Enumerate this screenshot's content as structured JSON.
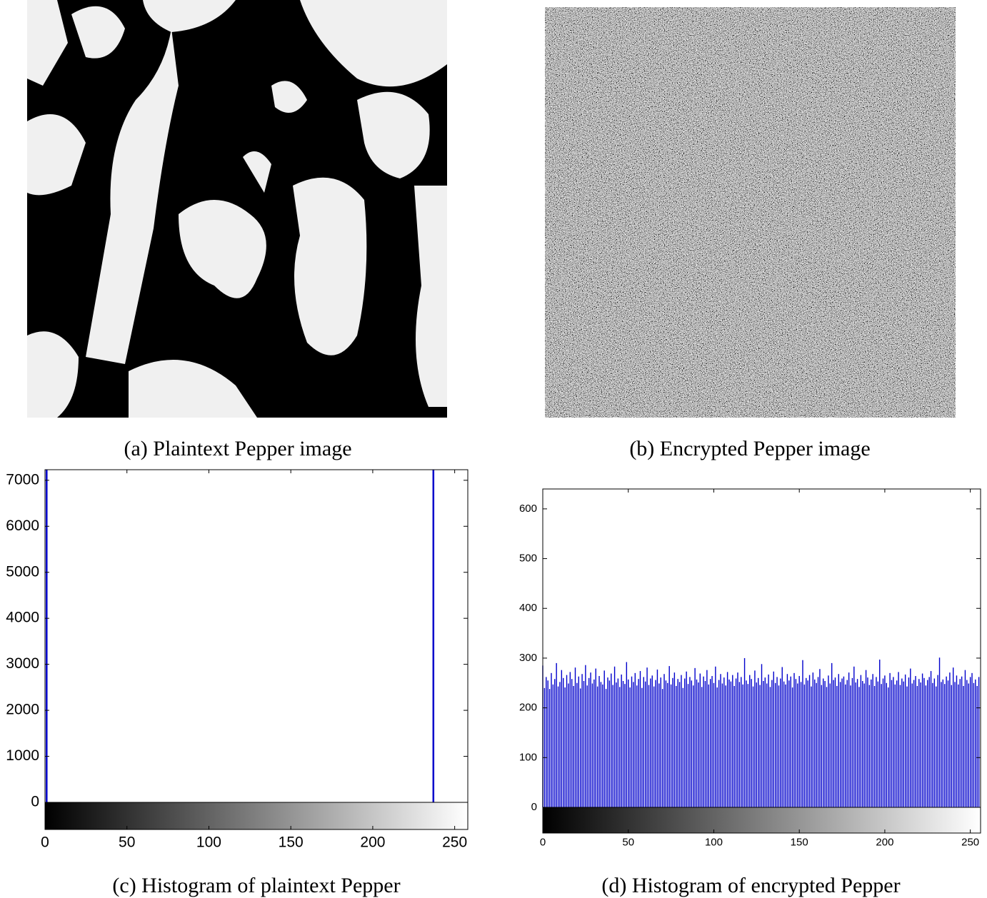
{
  "images": [
    {
      "caption": "(a) Plaintext Pepper image"
    },
    {
      "caption": "(b) Encrypted Pepper image"
    }
  ],
  "chart_data": [
    {
      "type": "bar",
      "caption": "(c) Histogram of plaintext Pepper",
      "color": "#0000cc",
      "x": [
        1,
        237
      ],
      "values": [
        7230,
        7230
      ],
      "xlim": [
        0,
        258
      ],
      "ylim": [
        0,
        7230
      ],
      "xticks": [
        0,
        50,
        100,
        150,
        200,
        250
      ],
      "yticks": [
        0,
        1000,
        2000,
        3000,
        4000,
        5000,
        6000,
        7000
      ]
    },
    {
      "type": "bar",
      "caption": "(d) Histogram of encrypted Pepper",
      "color": "#0000cc",
      "x": [
        0,
        1,
        2,
        3,
        4,
        5,
        6,
        7,
        8,
        9,
        10,
        11,
        12,
        13,
        14,
        15,
        16,
        17,
        18,
        19,
        20,
        21,
        22,
        23,
        24,
        25,
        26,
        27,
        28,
        29,
        30,
        31,
        32,
        33,
        34,
        35,
        36,
        37,
        38,
        39,
        40,
        41,
        42,
        43,
        44,
        45,
        46,
        47,
        48,
        49,
        50,
        51,
        52,
        53,
        54,
        55,
        56,
        57,
        58,
        59,
        60,
        61,
        62,
        63,
        64,
        65,
        66,
        67,
        68,
        69,
        70,
        71,
        72,
        73,
        74,
        75,
        76,
        77,
        78,
        79,
        80,
        81,
        82,
        83,
        84,
        85,
        86,
        87,
        88,
        89,
        90,
        91,
        92,
        93,
        94,
        95,
        96,
        97,
        98,
        99,
        100,
        101,
        102,
        103,
        104,
        105,
        106,
        107,
        108,
        109,
        110,
        111,
        112,
        113,
        114,
        115,
        116,
        117,
        118,
        119,
        120,
        121,
        122,
        123,
        124,
        125,
        126,
        127,
        128,
        129,
        130,
        131,
        132,
        133,
        134,
        135,
        136,
        137,
        138,
        139,
        140,
        141,
        142,
        143,
        144,
        145,
        146,
        147,
        148,
        149,
        150,
        151,
        152,
        153,
        154,
        155,
        156,
        157,
        158,
        159,
        160,
        161,
        162,
        163,
        164,
        165,
        166,
        167,
        168,
        169,
        170,
        171,
        172,
        173,
        174,
        175,
        176,
        177,
        178,
        179,
        180,
        181,
        182,
        183,
        184,
        185,
        186,
        187,
        188,
        189,
        190,
        191,
        192,
        193,
        194,
        195,
        196,
        197,
        198,
        199,
        200,
        201,
        202,
        203,
        204,
        205,
        206,
        207,
        208,
        209,
        210,
        211,
        212,
        213,
        214,
        215,
        216,
        217,
        218,
        219,
        220,
        221,
        222,
        223,
        224,
        225,
        226,
        227,
        228,
        229,
        230,
        231,
        232,
        233,
        234,
        235,
        236,
        237,
        238,
        239,
        240,
        241,
        242,
        243,
        244,
        245,
        246,
        247,
        248,
        249,
        250,
        251,
        252,
        253,
        254,
        255
      ],
      "values": [
        285,
        240,
        262,
        255,
        238,
        270,
        247,
        258,
        290,
        243,
        252,
        276,
        260,
        241,
        266,
        249,
        272,
        258,
        244,
        281,
        250,
        263,
        239,
        268,
        254,
        286,
        245,
        260,
        271,
        249,
        257,
        279,
        243,
        264,
        252,
        247,
        275,
        238,
        261,
        255,
        269,
        246,
        283,
        251,
        259,
        242,
        267,
        254,
        248,
        292,
        257,
        241,
        263,
        252,
        270,
        245,
        258,
        274,
        240,
        262,
        253,
        281,
        246,
        259,
        265,
        243,
        256,
        277,
        249,
        261,
        238,
        268,
        255,
        250,
        284,
        247,
        260,
        271,
        244,
        258,
        252,
        266,
        240,
        259,
        273,
        248,
        262,
        255,
        245,
        280,
        257,
        251,
        269,
        242,
        263,
        254,
        276,
        247,
        258,
        264,
        250,
        283,
        241,
        256,
        268,
        249,
        261,
        245,
        272,
        257,
        253,
        266,
        244,
        259,
        271,
        252,
        262,
        247,
        300,
        255,
        248,
        266,
        258,
        243,
        275,
        251,
        260,
        246,
        288,
        254,
        261,
        249,
        267,
        242,
        256,
        273,
        250,
        262,
        245,
        259,
        282,
        253,
        247,
        268,
        255,
        263,
        241,
        270,
        258,
        249,
        264,
        252,
        296,
        247,
        260,
        255,
        266,
        243,
        271,
        257,
        250,
        262,
        278,
        246,
        259,
        254,
        242,
        265,
        249,
        290,
        256,
        261,
        244,
        268,
        252,
        259,
        263,
        247,
        256,
        271,
        245,
        260,
        283,
        251,
        258,
        242,
        266,
        254,
        249,
        276,
        261,
        246,
        257,
        268,
        244,
        262,
        253,
        297,
        248,
        259,
        265,
        250,
        241,
        270,
        256,
        262,
        247,
        255,
        272,
        246,
        259,
        253,
        267,
        243,
        261,
        279,
        249,
        256,
        264,
        244,
        258,
        251,
        269,
        260,
        245,
        256,
        262,
        274,
        250,
        259,
        243,
        266,
        301,
        252,
        257,
        248,
        263,
        255,
        271,
        246,
        281,
        252,
        265,
        247,
        258,
        263,
        244,
        276,
        256,
        249,
        262,
        270,
        250,
        257,
        244,
        262
      ],
      "xlim": [
        0,
        256
      ],
      "ylim": [
        0,
        640
      ],
      "xticks": [
        0,
        50,
        100,
        150,
        200,
        250
      ],
      "yticks": [
        0,
        100,
        200,
        300,
        400,
        500,
        600
      ]
    }
  ]
}
